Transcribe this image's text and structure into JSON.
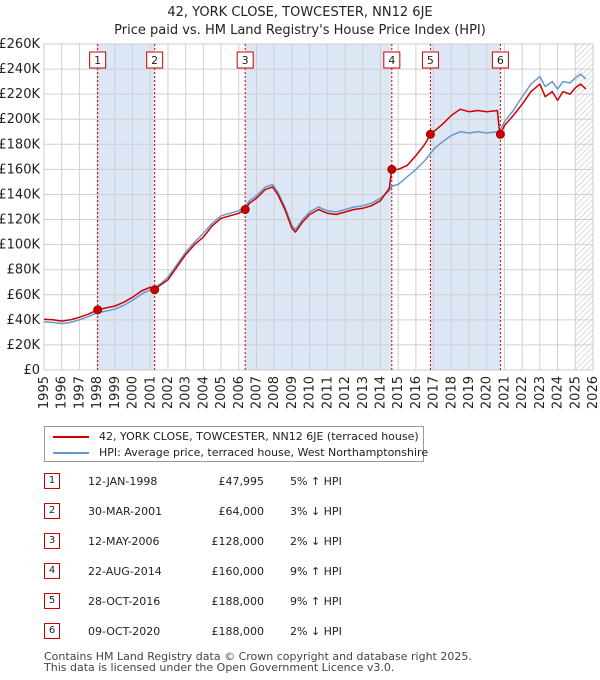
{
  "title": {
    "line1": "42, YORK CLOSE, TOWCESTER, NN12 6JE",
    "line2": "Price paid vs. HM Land Registry's House Price Index (HPI)"
  },
  "colors": {
    "property": "#cc0000",
    "hpi": "#6699cc",
    "shade": "#dde6f5",
    "grid": "#d0d0d0",
    "vline": "#cc0000"
  },
  "chart_data": {
    "type": "line",
    "ylim": [
      0,
      260000
    ],
    "xlim": [
      1995.0,
      2026.0
    ],
    "y_ticks": [
      {
        "value": 0,
        "label": "£0"
      },
      {
        "value": 20000,
        "label": "£20K"
      },
      {
        "value": 40000,
        "label": "£40K"
      },
      {
        "value": 60000,
        "label": "£60K"
      },
      {
        "value": 80000,
        "label": "£80K"
      },
      {
        "value": 100000,
        "label": "£100K"
      },
      {
        "value": 120000,
        "label": "£120K"
      },
      {
        "value": 140000,
        "label": "£140K"
      },
      {
        "value": 160000,
        "label": "£160K"
      },
      {
        "value": 180000,
        "label": "£180K"
      },
      {
        "value": 200000,
        "label": "£200K"
      },
      {
        "value": 220000,
        "label": "£220K"
      },
      {
        "value": 240000,
        "label": "£240K"
      },
      {
        "value": 260000,
        "label": "£260K"
      }
    ],
    "x_ticks": [
      "1995",
      "1996",
      "1997",
      "1998",
      "1999",
      "2000",
      "2001",
      "2002",
      "2003",
      "2004",
      "2005",
      "2006",
      "2007",
      "2008",
      "2009",
      "2010",
      "2011",
      "2012",
      "2013",
      "2014",
      "2015",
      "2016",
      "2017",
      "2018",
      "2019",
      "2020",
      "2021",
      "2022",
      "2023",
      "2024",
      "2025",
      "2026"
    ],
    "shaded_ranges": [
      [
        1998.03,
        2001.25
      ],
      [
        2006.36,
        2014.64
      ],
      [
        2016.82,
        2020.77
      ]
    ],
    "hatch_from": 2025.0,
    "series": [
      {
        "name": "42, YORK CLOSE, TOWCESTER, NN12 6JE (terraced house)",
        "color": "#cc0000",
        "points": [
          [
            1995.0,
            40500
          ],
          [
            1995.5,
            40000
          ],
          [
            1996.0,
            39000
          ],
          [
            1996.5,
            40000
          ],
          [
            1997.0,
            42000
          ],
          [
            1997.5,
            44500
          ],
          [
            1998.03,
            47995
          ],
          [
            1998.5,
            49500
          ],
          [
            1999.0,
            51000
          ],
          [
            1999.5,
            54000
          ],
          [
            2000.0,
            58000
          ],
          [
            2000.5,
            63000
          ],
          [
            2001.0,
            66000
          ],
          [
            2001.25,
            64000
          ],
          [
            2001.6,
            68000
          ],
          [
            2002.0,
            72000
          ],
          [
            2002.5,
            82000
          ],
          [
            2003.0,
            92000
          ],
          [
            2003.5,
            100000
          ],
          [
            2004.0,
            106000
          ],
          [
            2004.5,
            115000
          ],
          [
            2005.0,
            121000
          ],
          [
            2005.5,
            123000
          ],
          [
            2006.0,
            125000
          ],
          [
            2006.36,
            128000
          ],
          [
            2006.6,
            133000
          ],
          [
            2007.0,
            137000
          ],
          [
            2007.5,
            144000
          ],
          [
            2007.9,
            146000
          ],
          [
            2008.2,
            140000
          ],
          [
            2008.6,
            128000
          ],
          [
            2009.0,
            113000
          ],
          [
            2009.2,
            110000
          ],
          [
            2009.6,
            118000
          ],
          [
            2010.0,
            124000
          ],
          [
            2010.5,
            128000
          ],
          [
            2011.0,
            125000
          ],
          [
            2011.5,
            124000
          ],
          [
            2012.0,
            126000
          ],
          [
            2012.5,
            128000
          ],
          [
            2013.0,
            129000
          ],
          [
            2013.5,
            131000
          ],
          [
            2014.0,
            135000
          ],
          [
            2014.5,
            145000
          ],
          [
            2014.64,
            160000
          ],
          [
            2015.0,
            160000
          ],
          [
            2015.5,
            163000
          ],
          [
            2016.0,
            171000
          ],
          [
            2016.5,
            180000
          ],
          [
            2016.82,
            188000
          ],
          [
            2017.0,
            190000
          ],
          [
            2017.5,
            196000
          ],
          [
            2018.0,
            203000
          ],
          [
            2018.5,
            208000
          ],
          [
            2019.0,
            206000
          ],
          [
            2019.5,
            207000
          ],
          [
            2020.0,
            206000
          ],
          [
            2020.6,
            207000
          ],
          [
            2020.7,
            193000
          ],
          [
            2020.77,
            188000
          ],
          [
            2021.0,
            195000
          ],
          [
            2021.5,
            203000
          ],
          [
            2022.0,
            212000
          ],
          [
            2022.5,
            222000
          ],
          [
            2023.0,
            228000
          ],
          [
            2023.3,
            218000
          ],
          [
            2023.7,
            222000
          ],
          [
            2024.0,
            215000
          ],
          [
            2024.3,
            222000
          ],
          [
            2024.7,
            220000
          ],
          [
            2025.0,
            225000
          ],
          [
            2025.3,
            228000
          ],
          [
            2025.6,
            224000
          ]
        ]
      },
      {
        "name": "HPI: Average price, terraced house, West Northamptonshire",
        "color": "#6699cc",
        "points": [
          [
            1995.0,
            38500
          ],
          [
            1995.5,
            38000
          ],
          [
            1996.0,
            37000
          ],
          [
            1996.5,
            38000
          ],
          [
            1997.0,
            40000
          ],
          [
            1997.5,
            42500
          ],
          [
            1998.03,
            45800
          ],
          [
            1998.5,
            47000
          ],
          [
            1999.0,
            48500
          ],
          [
            1999.5,
            51500
          ],
          [
            2000.0,
            55500
          ],
          [
            2000.5,
            60500
          ],
          [
            2001.0,
            64000
          ],
          [
            2001.25,
            66000
          ],
          [
            2001.6,
            69000
          ],
          [
            2002.0,
            74000
          ],
          [
            2002.5,
            84000
          ],
          [
            2003.0,
            94000
          ],
          [
            2003.5,
            102000
          ],
          [
            2004.0,
            109000
          ],
          [
            2004.5,
            117000
          ],
          [
            2005.0,
            123000
          ],
          [
            2005.5,
            125000
          ],
          [
            2006.0,
            127000
          ],
          [
            2006.36,
            130500
          ],
          [
            2006.6,
            135000
          ],
          [
            2007.0,
            139000
          ],
          [
            2007.5,
            146000
          ],
          [
            2007.9,
            148000
          ],
          [
            2008.2,
            142000
          ],
          [
            2008.6,
            130000
          ],
          [
            2009.0,
            115000
          ],
          [
            2009.2,
            112000
          ],
          [
            2009.6,
            120000
          ],
          [
            2010.0,
            126000
          ],
          [
            2010.5,
            130000
          ],
          [
            2011.0,
            127000
          ],
          [
            2011.5,
            126000
          ],
          [
            2012.0,
            128000
          ],
          [
            2012.5,
            130000
          ],
          [
            2013.0,
            131000
          ],
          [
            2013.5,
            133000
          ],
          [
            2014.0,
            137000
          ],
          [
            2014.5,
            143000
          ],
          [
            2014.64,
            146500
          ],
          [
            2015.0,
            148000
          ],
          [
            2015.5,
            154000
          ],
          [
            2016.0,
            160000
          ],
          [
            2016.5,
            167000
          ],
          [
            2016.82,
            172500
          ],
          [
            2017.0,
            176000
          ],
          [
            2017.5,
            182000
          ],
          [
            2018.0,
            187000
          ],
          [
            2018.5,
            190000
          ],
          [
            2019.0,
            189000
          ],
          [
            2019.5,
            190000
          ],
          [
            2020.0,
            189000
          ],
          [
            2020.6,
            190000
          ],
          [
            2020.77,
            191800
          ],
          [
            2021.0,
            198000
          ],
          [
            2021.5,
            207000
          ],
          [
            2022.0,
            218000
          ],
          [
            2022.5,
            228000
          ],
          [
            2023.0,
            234000
          ],
          [
            2023.3,
            226000
          ],
          [
            2023.7,
            230000
          ],
          [
            2024.0,
            224000
          ],
          [
            2024.3,
            230000
          ],
          [
            2024.7,
            229000
          ],
          [
            2025.0,
            233000
          ],
          [
            2025.3,
            236000
          ],
          [
            2025.6,
            232000
          ]
        ]
      }
    ],
    "sales": [
      {
        "n": "1",
        "x": 1998.03,
        "price": 47995
      },
      {
        "n": "2",
        "x": 2001.25,
        "price": 64000
      },
      {
        "n": "3",
        "x": 2006.36,
        "price": 128000
      },
      {
        "n": "4",
        "x": 2014.64,
        "price": 160000
      },
      {
        "n": "5",
        "x": 2016.82,
        "price": 188000
      },
      {
        "n": "6",
        "x": 2020.77,
        "price": 188000
      }
    ]
  },
  "legend": {
    "property_label": "42, YORK CLOSE, TOWCESTER, NN12 6JE (terraced house)",
    "hpi_label": "HPI: Average price, terraced house, West Northamptonshire"
  },
  "sales_table": [
    {
      "n": "1",
      "date": "12-JAN-1998",
      "price": "£47,995",
      "hpi": "5% ↑ HPI"
    },
    {
      "n": "2",
      "date": "30-MAR-2001",
      "price": "£64,000",
      "hpi": "3% ↓ HPI"
    },
    {
      "n": "3",
      "date": "12-MAY-2006",
      "price": "£128,000",
      "hpi": "2% ↓ HPI"
    },
    {
      "n": "4",
      "date": "22-AUG-2014",
      "price": "£160,000",
      "hpi": "9% ↑ HPI"
    },
    {
      "n": "5",
      "date": "28-OCT-2016",
      "price": "£188,000",
      "hpi": "9% ↑ HPI"
    },
    {
      "n": "6",
      "date": "09-OCT-2020",
      "price": "£188,000",
      "hpi": "2% ↓ HPI"
    }
  ],
  "footer": {
    "line1": "Contains HM Land Registry data © Crown copyright and database right 2025.",
    "line2": "This data is licensed under the Open Government Licence v3.0."
  }
}
